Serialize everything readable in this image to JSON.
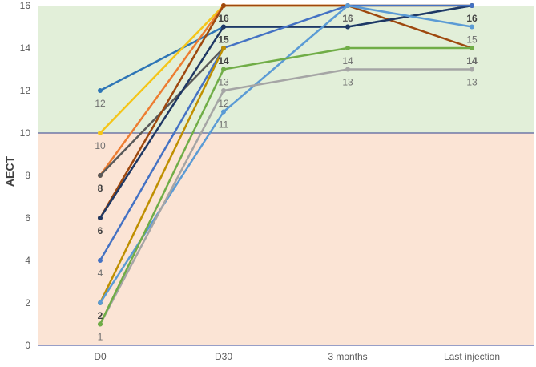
{
  "chart_data": {
    "type": "line",
    "title": "",
    "xlabel": "",
    "ylabel": "AECT",
    "categories": [
      "D0",
      "D30",
      "3 months",
      "Last injection"
    ],
    "ylim": [
      0,
      16
    ],
    "y_ticks": [
      0,
      2,
      4,
      6,
      8,
      10,
      12,
      14,
      16
    ],
    "grid": false,
    "legend": "none",
    "bands": [
      {
        "from": 10,
        "to": 16,
        "color": "#e2efd9"
      },
      {
        "from": 0,
        "to": 10,
        "color": "#fbe4d5"
      }
    ],
    "threshold_line": {
      "value": 10,
      "color": "#2f3e8f"
    },
    "series": [
      {
        "color": "#2e75b6",
        "values": [
          12,
          15,
          15,
          16
        ],
        "data_labels": [
          true,
          false,
          false,
          false
        ]
      },
      {
        "color": "#f5c518",
        "values": [
          10,
          16,
          16,
          16
        ],
        "data_labels": [
          true,
          false,
          false,
          false
        ]
      },
      {
        "color": "#ed7d31",
        "values": [
          8,
          16,
          16,
          16
        ],
        "data_labels": [
          false,
          false,
          false,
          false
        ]
      },
      {
        "color": "#595959",
        "values": [
          8,
          14,
          null,
          null
        ],
        "data_labels": [
          true,
          false,
          false,
          false
        ]
      },
      {
        "color": "#9e480e",
        "values": [
          6,
          16,
          16,
          14
        ],
        "data_labels": [
          true,
          true,
          true,
          true
        ]
      },
      {
        "color": "#1f3864",
        "values": [
          6,
          15,
          15,
          16
        ],
        "data_labels": [
          false,
          true,
          false,
          true
        ]
      },
      {
        "color": "#4472c4",
        "values": [
          4,
          14,
          16,
          16
        ],
        "data_labels": [
          true,
          false,
          false,
          false
        ]
      },
      {
        "color": "#bf8f00",
        "values": [
          2,
          14,
          null,
          null
        ],
        "data_labels": [
          true,
          true,
          false,
          false
        ]
      },
      {
        "color": "#5b9bd5",
        "values": [
          2,
          11,
          16,
          15
        ],
        "data_labels": [
          false,
          true,
          true,
          true
        ]
      },
      {
        "color": "#a5a5a5",
        "values": [
          1,
          12,
          13,
          13
        ],
        "data_labels": [
          false,
          true,
          true,
          true
        ]
      },
      {
        "color": "#70ad47",
        "values": [
          1,
          13,
          14,
          14
        ],
        "data_labels": [
          true,
          true,
          true,
          true
        ]
      }
    ]
  }
}
